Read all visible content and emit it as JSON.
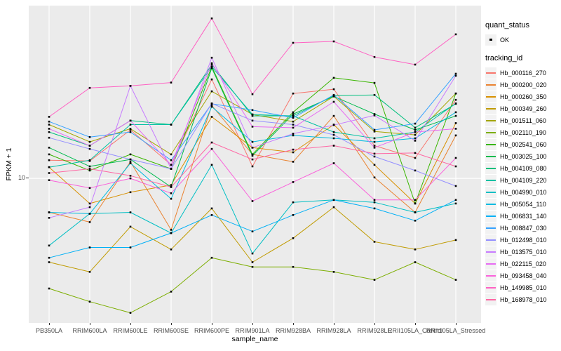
{
  "figure": {
    "y_axis": {
      "title": "FPKM + 1",
      "tick_label": "10"
    },
    "x_axis": {
      "title": "sample_name"
    },
    "legend": {
      "quant_status": {
        "title": "quant_status",
        "items": [
          {
            "label": "OK",
            "symbol": "point"
          }
        ]
      },
      "tracking_id": {
        "title": "tracking_id"
      }
    },
    "colors": {
      "panel_bg": "#EBEBEB",
      "grid": "#FFFFFF",
      "point": "#000000",
      "key_bg": "#F2F2F2",
      "tick_text": "#4d4d4d"
    }
  },
  "chart_data": {
    "type": "line",
    "title": "",
    "xlabel": "sample_name",
    "ylabel": "FPKM + 1",
    "y_scale": "log10",
    "ylim": [
      2.06,
      66.1
    ],
    "y_ticks": [
      10
    ],
    "grid": "vertical major gridlines per sample; horizontal gridline at 10",
    "legend_position": "right",
    "point_shape": "small black square (quant_status OK)",
    "x_categories": [
      "PB350LA",
      "RRIM600LA",
      "RRIM600LE",
      "RRIM600SE",
      "RRIM600PE",
      "RRIM901LA",
      "RRIM928BA",
      "RRIM928LA",
      "RRIM928LE",
      "RRII105LA_Control",
      "RRII105LA_Stressed"
    ],
    "series": [
      {
        "name": "Hb_000116_270",
        "color": "#F8766D",
        "quant_status": "OK",
        "values": [
          12.2,
          12.1,
          17.0,
          11.6,
          29.5,
          11.4,
          25.3,
          26.5,
          14.3,
          12.5,
          23.6
        ]
      },
      {
        "name": "Hb_000200_020",
        "color": "#EA8331",
        "quant_status": "OK",
        "values": [
          6.9,
          6.2,
          12.0,
          5.7,
          22.2,
          13.0,
          12.0,
          19.8,
          10.1,
          6.9,
          16.0
        ]
      },
      {
        "name": "Hb_000260_350",
        "color": "#D89000",
        "quant_status": "OK",
        "values": [
          11.3,
          7.6,
          8.6,
          9.3,
          19.6,
          14.0,
          13.3,
          18.0,
          11.6,
          7.6,
          18.3
        ]
      },
      {
        "name": "Hb_000349_260",
        "color": "#C09B00",
        "quant_status": "OK",
        "values": [
          4.0,
          3.6,
          5.9,
          4.6,
          7.2,
          4.0,
          5.2,
          7.3,
          5.0,
          4.6,
          5.1
        ]
      },
      {
        "name": "Hb_001511_060",
        "color": "#A3A500",
        "quant_status": "OK",
        "values": [
          18.0,
          14.9,
          17.2,
          13.0,
          25.9,
          20.1,
          18.6,
          24.5,
          16.7,
          16.1,
          25.3
        ]
      },
      {
        "name": "Hb_002110_190",
        "color": "#7CAE00",
        "quant_status": "OK",
        "values": [
          3.0,
          2.6,
          2.3,
          2.9,
          4.2,
          3.8,
          3.8,
          3.6,
          3.3,
          4.0,
          3.3
        ]
      },
      {
        "name": "Hb_002541_060",
        "color": "#39B600",
        "quant_status": "OK",
        "values": [
          13.0,
          10.9,
          13.0,
          11.1,
          33.9,
          13.0,
          20.6,
          30.0,
          28.4,
          7.6,
          25.3
        ]
      },
      {
        "name": "Hb_003025_100",
        "color": "#00BB4E",
        "quant_status": "OK",
        "values": [
          14.0,
          11.4,
          12.3,
          9.1,
          33.4,
          12.8,
          20.2,
          24.5,
          20.2,
          17.0,
          19.8
        ]
      },
      {
        "name": "Hb_004109_080",
        "color": "#00BF7D",
        "quant_status": "OK",
        "values": [
          16.6,
          14.3,
          18.8,
          18.0,
          34.7,
          19.8,
          19.8,
          24.7,
          24.9,
          17.4,
          22.6
        ]
      },
      {
        "name": "Hb_004109_220",
        "color": "#00C1A3",
        "quant_status": "OK",
        "values": [
          11.3,
          12.2,
          18.0,
          18.0,
          33.9,
          20.1,
          19.8,
          16.6,
          15.5,
          16.6,
          22.7
        ]
      },
      {
        "name": "Hb_004990_010",
        "color": "#00BFC4",
        "quant_status": "OK",
        "values": [
          4.8,
          6.8,
          6.9,
          5.5,
          11.6,
          4.4,
          7.7,
          7.9,
          7.7,
          6.9,
          7.6
        ]
      },
      {
        "name": "Hb_005054_110",
        "color": "#00BAE0",
        "quant_status": "OK",
        "values": [
          6.9,
          6.8,
          11.8,
          8.0,
          21.9,
          14.9,
          16.0,
          15.5,
          14.9,
          15.5,
          20.6
        ]
      },
      {
        "name": "Hb_006831_140",
        "color": "#00B0F6",
        "quant_status": "OK",
        "values": [
          4.2,
          4.7,
          4.7,
          5.5,
          6.7,
          5.6,
          6.7,
          7.9,
          7.2,
          6.3,
          7.9
        ]
      },
      {
        "name": "Hb_008847_030",
        "color": "#35A2FF",
        "quant_status": "OK",
        "values": [
          18.6,
          15.7,
          16.6,
          12.2,
          22.6,
          21.1,
          19.4,
          24.9,
          17.0,
          18.2,
          31.4
        ]
      },
      {
        "name": "Hb_012498_010",
        "color": "#9590FF",
        "quant_status": "OK",
        "values": [
          15.6,
          13.8,
          12.3,
          11.1,
          22.7,
          18.8,
          18.0,
          16.1,
          12.7,
          10.9,
          9.2
        ]
      },
      {
        "name": "Hb_013575_010",
        "color": "#C77CFF",
        "quant_status": "OK",
        "values": [
          6.5,
          7.3,
          27.5,
          11.1,
          37.4,
          14.0,
          16.3,
          17.9,
          19.9,
          15.1,
          30.7
        ]
      },
      {
        "name": "Hb_022115_020",
        "color": "#E76BF3",
        "quant_status": "OK",
        "values": [
          17.2,
          14.3,
          18.8,
          11.6,
          35.2,
          17.6,
          17.4,
          23.1,
          14.0,
          16.6,
          17.2
        ]
      },
      {
        "name": "Hb_093458_040",
        "color": "#FA62DB",
        "quant_status": "OK",
        "values": [
          9.8,
          9.0,
          10.0,
          8.5,
          13.8,
          7.8,
          9.6,
          11.8,
          7.9,
          7.9,
          12.5
        ]
      },
      {
        "name": "Hb_149985_010",
        "color": "#FF61C3",
        "quant_status": "OK",
        "values": [
          19.6,
          26.9,
          27.5,
          28.5,
          57.5,
          25.1,
          44.0,
          44.7,
          37.7,
          34.7,
          48.3
        ]
      },
      {
        "name": "Hb_168978_010",
        "color": "#FF67A4",
        "quant_status": "OK",
        "values": [
          10.6,
          11.1,
          10.3,
          9.1,
          14.8,
          12.3,
          13.7,
          14.3,
          13.1,
          13.2,
          11.4
        ]
      }
    ]
  }
}
